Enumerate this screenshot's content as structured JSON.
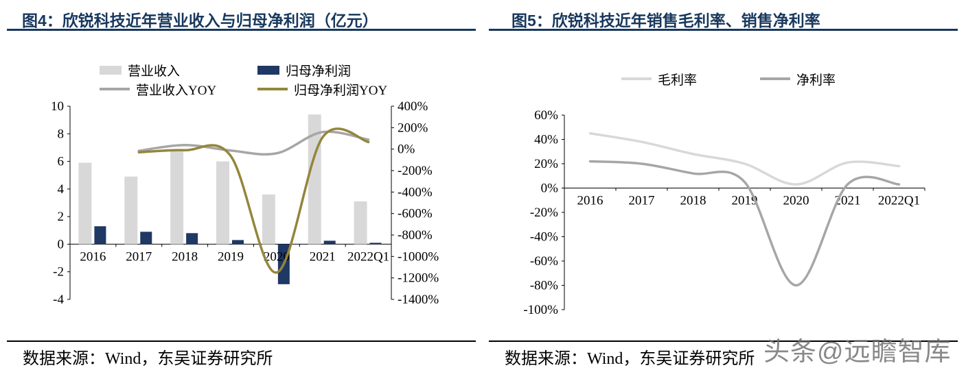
{
  "watermark": "头条@远瞻智库",
  "chart_data": [
    {
      "id": "fig4",
      "type": "bar",
      "subtype": "bar-line-combo",
      "title": "图4：欣锐科技近年营业收入与归母净利润（亿元）",
      "source": "数据来源：Wind，东吴证券研究所",
      "categories": [
        "2016",
        "2017",
        "2018",
        "2019",
        "2020",
        "2021",
        "2022Q1"
      ],
      "bar_series": [
        {
          "key": "revenue",
          "name": "营业收入",
          "color": "#D8D8D8",
          "axis": "left",
          "unit": "亿元",
          "values": [
            5.9,
            4.9,
            6.8,
            6.0,
            3.6,
            9.4,
            3.1
          ]
        },
        {
          "key": "net-profit",
          "name": "归母净利润",
          "color": "#1F3864",
          "axis": "left",
          "unit": "亿元",
          "values": [
            1.3,
            0.9,
            0.8,
            0.3,
            -2.9,
            0.25,
            0.1
          ]
        }
      ],
      "line_series": [
        {
          "key": "revenue-yoy",
          "name": "营业收入YOY",
          "color": "#A6A6A6",
          "axis": "right",
          "unit": "%",
          "values": [
            null,
            -16,
            38,
            -13,
            -39,
            159,
            88
          ]
        },
        {
          "key": "net-profit-yoy",
          "name": "归母净利润YOY",
          "color": "#93863C",
          "axis": "right",
          "unit": "%",
          "values": [
            null,
            -29,
            -10,
            -63,
            -1150,
            109,
            66
          ]
        }
      ],
      "left_axis": {
        "max": 10,
        "min": -4,
        "step": 2,
        "ticks": [
          "10",
          "8",
          "6",
          "4",
          "2",
          "0",
          "-2",
          "-4"
        ]
      },
      "right_axis": {
        "max": 400,
        "min": -1400,
        "step": 200,
        "ticks": [
          "400%",
          "200%",
          "0%",
          "-200%",
          "-400%",
          "-600%",
          "-800%",
          "-1000%",
          "-1200%",
          "-1400%"
        ]
      },
      "grid": "off",
      "legend_position": "top"
    },
    {
      "id": "fig5",
      "type": "line",
      "title": "图5：欣锐科技近年销售毛利率、销售净利率",
      "source": "数据来源：Wind，东吴证券研究所",
      "categories": [
        "2016",
        "2017",
        "2018",
        "2019",
        "2020",
        "2021",
        "2022Q1"
      ],
      "line_series": [
        {
          "key": "gross-margin",
          "name": "毛利率",
          "color": "#D8D8D8",
          "unit": "%",
          "values": [
            45,
            38,
            28,
            20,
            3,
            21,
            18
          ]
        },
        {
          "key": "net-margin",
          "name": "净利率",
          "color": "#A6A6A6",
          "unit": "%",
          "values": [
            22,
            20,
            12,
            5,
            -80,
            3,
            3
          ]
        }
      ],
      "y_axis": {
        "max": 60,
        "min": -100,
        "step": 20,
        "ticks": [
          "60%",
          "40%",
          "20%",
          "0%",
          "-20%",
          "-40%",
          "-60%",
          "-80%",
          "-100%"
        ]
      },
      "grid": "off",
      "legend_position": "top"
    }
  ]
}
